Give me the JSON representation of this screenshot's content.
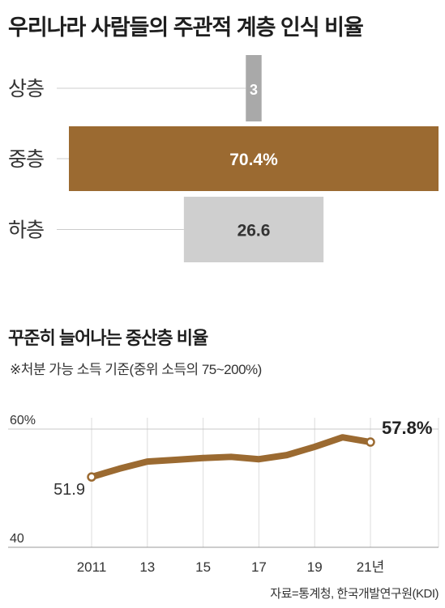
{
  "chart_data": [
    {
      "type": "bar",
      "title": "우리나라 사람들의 주관적 계층 인식 비율",
      "orientation": "horizontal-centered",
      "categories": [
        "상층",
        "중층",
        "하층"
      ],
      "values": [
        3,
        70.4,
        26.6
      ],
      "value_labels": [
        "3",
        "70.4%",
        "26.6"
      ],
      "colors": [
        "#a9a9a9",
        "#9b6a31",
        "#cfcfcf"
      ],
      "label_colors": [
        "#ffffff",
        "#ffffff",
        "#333333"
      ]
    },
    {
      "type": "line",
      "title": "꾸준히 늘어나는 중산층 비율",
      "note": "※처분 가능 소득 기준(중위 소득의 75~200%)",
      "x": [
        2011,
        2012,
        2013,
        2014,
        2015,
        2016,
        2017,
        2018,
        2019,
        2020,
        2021
      ],
      "values": [
        51.9,
        53.3,
        54.5,
        54.8,
        55.1,
        55.3,
        54.9,
        55.6,
        57.0,
        58.6,
        57.8
      ],
      "x_tick_values": [
        2011,
        2013,
        2015,
        2017,
        2019,
        2021
      ],
      "x_tick_labels": [
        "2011",
        "13",
        "15",
        "17",
        "19",
        "21년"
      ],
      "y_tick_values": [
        60,
        40
      ],
      "y_tick_labels": [
        "60%",
        "40"
      ],
      "ylim": [
        40,
        60
      ],
      "start_label": "51.9",
      "end_label": "57.8%",
      "line_color": "#9b6a31",
      "grid": true
    }
  ],
  "source": "자료=통계청, 한국개발연구원(KDI)"
}
